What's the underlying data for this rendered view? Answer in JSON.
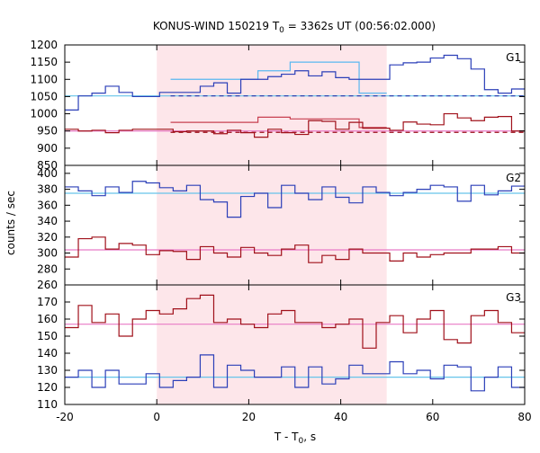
{
  "chart_data": {
    "type": "line",
    "title_main": "KONUS-WIND 150219 T",
    "title_sub": "0",
    "title_rest": " = 3362s UT (00:56:02.000)",
    "xlabel_main": "T - T",
    "xlabel_sub": "0",
    "xlabel_rest": ", s",
    "ylabel": "counts / sec",
    "xlim": [
      -20,
      80
    ],
    "xticks": [
      -20,
      0,
      20,
      40,
      60,
      80
    ],
    "shaded_interval": [
      0,
      50
    ],
    "colors": {
      "blue": "#2b3fb8",
      "red": "#a0101a",
      "fit_blue": "#66c4ea",
      "fit_pink": "#e87ac6",
      "dash_blue": "#2233aa",
      "dash_red": "#9a0d18",
      "shade": "#fde6ea",
      "step_fit": "#5ab8f0",
      "step_fit_red": "#c84050"
    },
    "panels": [
      {
        "label": "G1",
        "ylim": [
          850,
          1200
        ],
        "yticks": [
          850,
          900,
          950,
          1000,
          1050,
          1100,
          1150,
          1200
        ],
        "series": [
          {
            "color": "blue",
            "t0": -20,
            "dt": 2.944,
            "values": [
              1011,
              1052,
              1060,
              1080,
              1062,
              1050,
              1050,
              1062,
              1062,
              1062,
              1080,
              1090,
              1060,
              1100,
              1100,
              1108,
              1115,
              1125,
              1110,
              1122,
              1105,
              1100,
              1100,
              1100,
              1142,
              1148,
              1150,
              1162,
              1170,
              1160,
              1130,
              1070,
              1060,
              1072,
              1080,
              1085,
              1052,
              1060,
              1080,
              1050,
              1050,
              1072,
              1060,
              1068,
              1080,
              1085,
              1090,
              1067,
              1048,
              1080,
              1060,
              1060,
              1060,
              1060,
              1062
            ]
          },
          {
            "color": "red",
            "t0": -20,
            "dt": 2.944,
            "values": [
              955,
              950,
              952,
              945,
              952,
              955,
              955,
              955,
              948,
              950,
              950,
              942,
              952,
              945,
              932,
              955,
              945,
              940,
              980,
              978,
              955,
              975,
              958,
              958,
              952,
              976,
              970,
              968,
              1000,
              988,
              980,
              990,
              992,
              950,
              958,
              985,
              940,
              985,
              960,
              942,
              955,
              942,
              985,
              942,
              950,
              965,
              930,
              960,
              938,
              938,
              945,
              948,
              950,
              920,
              945,
              948
            ]
          }
        ],
        "fits": [
          {
            "style": "solid",
            "color": "fit_blue",
            "value": 1052
          },
          {
            "style": "dashed",
            "color": "dash_blue",
            "value": 1052,
            "from": 3
          },
          {
            "style": "dashed",
            "color": "dash_red",
            "value": 946,
            "from": 3
          },
          {
            "style": "solid",
            "color": "fit_pink",
            "value": 950
          }
        ],
        "step_fits": [
          {
            "color": "step_fit",
            "points": [
              [
                3,
                1100
              ],
              [
                22,
                1100
              ],
              [
                22,
                1125
              ],
              [
                29,
                1125
              ],
              [
                29,
                1150
              ],
              [
                44,
                1150
              ],
              [
                44,
                1060
              ],
              [
                50,
                1060
              ]
            ]
          },
          {
            "color": "step_fit_red",
            "points": [
              [
                3,
                975
              ],
              [
                22,
                975
              ],
              [
                22,
                990
              ],
              [
                29,
                990
              ],
              [
                29,
                985
              ],
              [
                44,
                985
              ],
              [
                44,
                960
              ],
              [
                50,
                960
              ]
            ]
          }
        ]
      },
      {
        "label": "G2",
        "ylim": [
          260,
          410
        ],
        "yticks": [
          260,
          280,
          300,
          320,
          340,
          360,
          380,
          400
        ],
        "series": [
          {
            "color": "blue",
            "t0": -20,
            "dt": 2.944,
            "values": [
              383,
              378,
              372,
              383,
              376,
              390,
              388,
              382,
              378,
              385,
              367,
              364,
              345,
              371,
              375,
              357,
              385,
              375,
              367,
              383,
              370,
              363,
              383,
              376,
              372,
              376,
              380,
              385,
              383,
              365,
              385,
              373,
              378,
              384,
              376,
              364,
              370,
              380,
              383,
              378,
              385,
              385,
              375,
              365,
              373,
              396,
              378,
              383,
              365,
              365,
              375,
              385,
              390,
              382,
              370,
              383
            ]
          },
          {
            "color": "red",
            "t0": -20,
            "dt": 2.944,
            "values": [
              295,
              318,
              320,
              305,
              312,
              310,
              298,
              303,
              302,
              292,
              308,
              300,
              295,
              307,
              300,
              297,
              305,
              310,
              288,
              297,
              292,
              305,
              300,
              300,
              290,
              300,
              295,
              298,
              300,
              300,
              305,
              305,
              308,
              300,
              302,
              305,
              288,
              310,
              300,
              305,
              302,
              298,
              305,
              298,
              300,
              320,
              300,
              300,
              300,
              290,
              308,
              300,
              307,
              298,
              292,
              320
            ]
          }
        ],
        "fits": [
          {
            "style": "solid",
            "color": "fit_blue",
            "value": 375
          },
          {
            "style": "solid",
            "color": "fit_pink",
            "value": 304
          }
        ],
        "step_fits": []
      },
      {
        "label": "G3",
        "ylim": [
          110,
          180
        ],
        "yticks": [
          110,
          120,
          130,
          140,
          150,
          160,
          170
        ],
        "series": [
          {
            "color": "red",
            "t0": -20,
            "dt": 2.944,
            "values": [
              155,
              168,
              158,
              163,
              150,
              160,
              165,
              163,
              166,
              172,
              174,
              158,
              160,
              157,
              155,
              163,
              165,
              158,
              158,
              155,
              157,
              160,
              143,
              158,
              162,
              152,
              160,
              165,
              148,
              146,
              162,
              165,
              158,
              152,
              162,
              159,
              157,
              156,
              148,
              145,
              158,
              163,
              165,
              170,
              158,
              165,
              160,
              155,
              148,
              158,
              153,
              152,
              148,
              158,
              152,
              148
            ]
          },
          {
            "color": "blue",
            "t0": -20,
            "dt": 2.944,
            "values": [
              126,
              130,
              120,
              130,
              122,
              122,
              128,
              120,
              124,
              126,
              139,
              120,
              133,
              130,
              126,
              126,
              132,
              120,
              132,
              122,
              125,
              133,
              128,
              128,
              135,
              128,
              130,
              125,
              133,
              132,
              118,
              126,
              132,
              120,
              132,
              122,
              135,
              125,
              120,
              132,
              125,
              130,
              125,
              128,
              122,
              124,
              132,
              128,
              128,
              120,
              124,
              125,
              126,
              128,
              120,
              132
            ]
          }
        ],
        "fits": [
          {
            "style": "solid",
            "color": "fit_pink",
            "value": 157
          },
          {
            "style": "solid",
            "color": "fit_blue",
            "value": 126
          }
        ],
        "step_fits": []
      }
    ]
  }
}
